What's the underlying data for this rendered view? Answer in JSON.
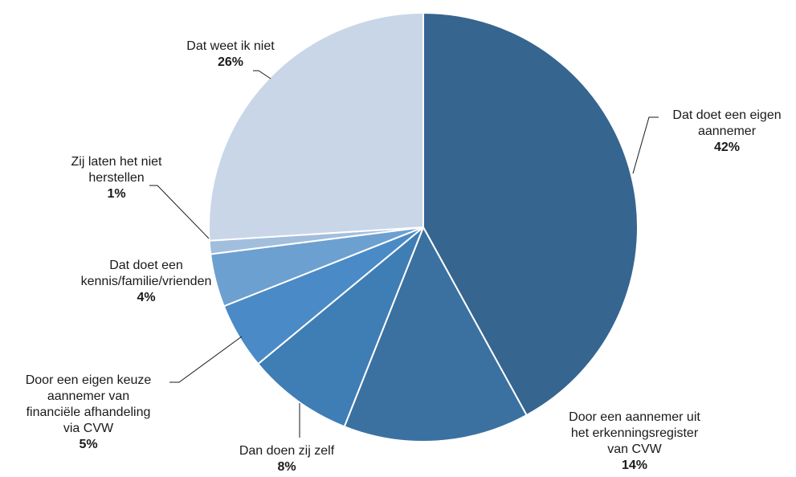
{
  "chart_data": {
    "type": "pie",
    "start_angle_deg": 0,
    "direction": "clockwise",
    "slices": [
      {
        "lines": [
          "Dat doet een eigen",
          "aannemer"
        ],
        "pct_label": "42%",
        "value": 42,
        "color": "#36658F"
      },
      {
        "lines": [
          "Door een aannemer uit",
          "het erkenningsregister",
          "van CVW"
        ],
        "pct_label": "14%",
        "value": 14,
        "color": "#3A71A0"
      },
      {
        "lines": [
          "Dan doen zij zelf"
        ],
        "pct_label": "8%",
        "value": 8,
        "color": "#3F7DB5"
      },
      {
        "lines": [
          "Door een eigen keuze",
          "aannemer van",
          "financiële afhandeling",
          "via CVW"
        ],
        "pct_label": "5%",
        "value": 5,
        "color": "#4A8AC6"
      },
      {
        "lines": [
          "Dat doet een",
          "kennis/familie/vrienden"
        ],
        "pct_label": "4%",
        "value": 4,
        "color": "#6CA0D0"
      },
      {
        "lines": [
          "Zij laten het niet",
          "herstellen"
        ],
        "pct_label": "1%",
        "value": 1,
        "color": "#A2BEDD"
      },
      {
        "lines": [
          "Dat weet ik niet"
        ],
        "pct_label": "26%",
        "value": 26,
        "color": "#C8D6E8"
      }
    ]
  }
}
